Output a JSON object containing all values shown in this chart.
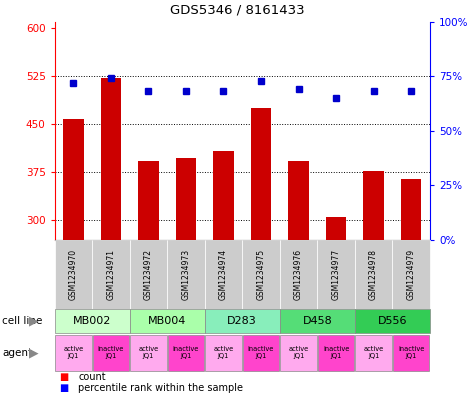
{
  "title": "GDS5346 / 8161433",
  "samples": [
    "GSM1234970",
    "GSM1234971",
    "GSM1234972",
    "GSM1234973",
    "GSM1234974",
    "GSM1234975",
    "GSM1234976",
    "GSM1234977",
    "GSM1234978",
    "GSM1234979"
  ],
  "counts": [
    458,
    522,
    393,
    398,
    408,
    475,
    393,
    305,
    377,
    365
  ],
  "percentiles": [
    72,
    74,
    68,
    68,
    68,
    73,
    69,
    65,
    68,
    68
  ],
  "cell_lines": [
    {
      "label": "MB002",
      "cols": [
        0,
        1
      ],
      "color": "#ccffcc"
    },
    {
      "label": "MB004",
      "cols": [
        2,
        3
      ],
      "color": "#aaffaa"
    },
    {
      "label": "D283",
      "cols": [
        4,
        5
      ],
      "color": "#88eebb"
    },
    {
      "label": "D458",
      "cols": [
        6,
        7
      ],
      "color": "#55dd77"
    },
    {
      "label": "D556",
      "cols": [
        8,
        9
      ],
      "color": "#33cc55"
    }
  ],
  "agent_labels": [
    "active\nJQ1",
    "inactive\nJQ1",
    "active\nJQ1",
    "inactive\nJQ1",
    "active\nJQ1",
    "inactive\nJQ1",
    "active\nJQ1",
    "inactive\nJQ1",
    "active\nJQ1",
    "inactive\nJQ1"
  ],
  "agent_colors": [
    "#ffaaee",
    "#ff44cc",
    "#ffaaee",
    "#ff44cc",
    "#ffaaee",
    "#ff44cc",
    "#ffaaee",
    "#ff44cc",
    "#ffaaee",
    "#ff44cc"
  ],
  "bar_color": "#cc0000",
  "dot_color": "#0000cc",
  "sample_bg_color": "#cccccc",
  "ylim_left": [
    270,
    610
  ],
  "yticks_left": [
    300,
    375,
    450,
    525,
    600
  ],
  "ylim_right": [
    0,
    100
  ],
  "yticks_right": [
    0,
    25,
    50,
    75,
    100
  ],
  "ytick_labels_right": [
    "0%",
    "25%",
    "50%",
    "75%",
    "100%"
  ]
}
